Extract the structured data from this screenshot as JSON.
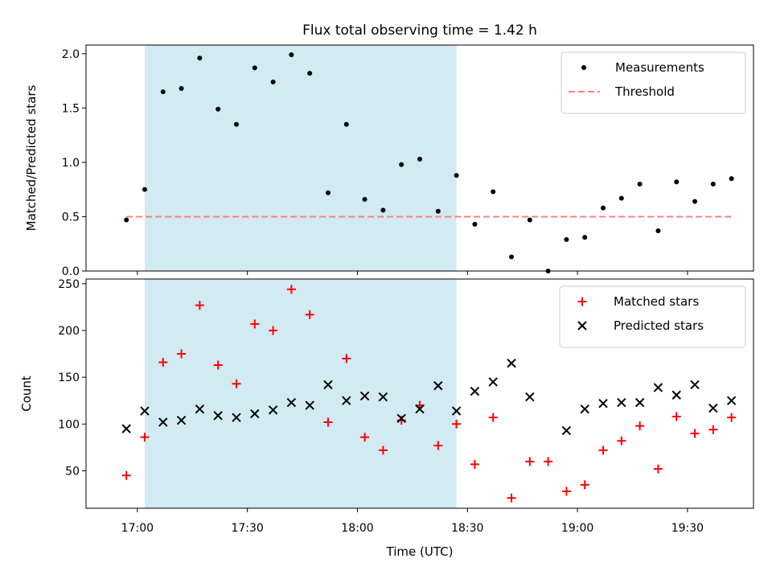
{
  "title": "Flux total observing time = 1.42 h",
  "chart_data": [
    {
      "type": "scatter",
      "ylabel": "Matched/Predicted stars",
      "xlabel": "",
      "x_range": [
        "16:46",
        "19:48"
      ],
      "ylim": [
        0,
        2.08
      ],
      "y_ticks": [
        "0.0",
        "0.5",
        "1.0",
        "1.5",
        "2.0"
      ],
      "shaded_interval": [
        "17:02",
        "18:27"
      ],
      "shaded_color": "#add8e6",
      "legend_position": "top-right",
      "series": [
        {
          "name": "Measurements",
          "marker": "dot",
          "color": "#000000",
          "x": [
            "16:57",
            "17:02",
            "17:07",
            "17:12",
            "17:17",
            "17:22",
            "17:27",
            "17:32",
            "17:37",
            "17:42",
            "17:47",
            "17:52",
            "17:57",
            "18:02",
            "18:07",
            "18:12",
            "18:17",
            "18:22",
            "18:27",
            "18:32",
            "18:37",
            "18:42",
            "18:47",
            "18:52",
            "18:57",
            "19:02",
            "19:07",
            "19:12",
            "19:17",
            "19:22",
            "19:27",
            "19:32",
            "19:37",
            "19:42"
          ],
          "y": [
            0.47,
            0.75,
            1.65,
            1.68,
            1.96,
            1.49,
            1.35,
            1.87,
            1.74,
            1.99,
            1.82,
            0.72,
            1.35,
            0.66,
            0.56,
            0.98,
            1.03,
            0.55,
            0.88,
            0.43,
            0.73,
            0.13,
            0.47,
            0.0,
            0.29,
            0.31,
            0.58,
            0.67,
            0.8,
            0.37,
            0.82,
            0.64,
            0.8,
            0.85
          ]
        },
        {
          "name": "Threshold",
          "style": "dashed",
          "color": "#ff7f7f",
          "x": [
            "16:57",
            "19:42"
          ],
          "y": [
            0.5,
            0.5
          ]
        }
      ]
    },
    {
      "type": "scatter",
      "ylabel": "Count",
      "xlabel": "Time (UTC)",
      "x_range": [
        "16:46",
        "19:48"
      ],
      "ylim": [
        10,
        255
      ],
      "y_ticks": [
        "50",
        "100",
        "150",
        "200",
        "250"
      ],
      "x_ticks": [
        "17:00",
        "17:30",
        "18:00",
        "18:30",
        "19:00",
        "19:30"
      ],
      "shaded_interval": [
        "17:02",
        "18:27"
      ],
      "shaded_color": "#add8e6",
      "legend_position": "top-right",
      "series": [
        {
          "name": "Matched stars",
          "marker": "plus",
          "color": "#ff0000",
          "x": [
            "16:57",
            "17:02",
            "17:07",
            "17:12",
            "17:17",
            "17:22",
            "17:27",
            "17:32",
            "17:37",
            "17:42",
            "17:47",
            "17:52",
            "17:57",
            "18:02",
            "18:07",
            "18:12",
            "18:17",
            "18:22",
            "18:27",
            "18:32",
            "18:37",
            "18:42",
            "18:47",
            "18:52",
            "18:57",
            "19:02",
            "19:07",
            "19:12",
            "19:17",
            "19:22",
            "19:27",
            "19:32",
            "19:37",
            "19:42"
          ],
          "y": [
            45,
            86,
            166,
            175,
            227,
            163,
            143,
            207,
            200,
            244,
            217,
            102,
            170,
            86,
            72,
            104,
            120,
            77,
            100,
            57,
            107,
            21,
            60,
            60,
            28,
            35,
            72,
            82,
            98,
            52,
            108,
            90,
            94,
            107
          ]
        },
        {
          "name": "Predicted stars",
          "marker": "x",
          "color": "#000000",
          "x": [
            "16:57",
            "17:02",
            "17:07",
            "17:12",
            "17:17",
            "17:22",
            "17:27",
            "17:32",
            "17:37",
            "17:42",
            "17:47",
            "17:52",
            "17:57",
            "18:02",
            "18:07",
            "18:12",
            "18:17",
            "18:22",
            "18:27",
            "18:32",
            "18:37",
            "18:42",
            "18:47",
            "18:57",
            "19:02",
            "19:07",
            "19:12",
            "19:17",
            "19:22",
            "19:27",
            "19:32",
            "19:37",
            "19:42"
          ],
          "y": [
            95,
            114,
            102,
            104,
            116,
            109,
            107,
            111,
            115,
            123,
            120,
            142,
            125,
            130,
            129,
            106,
            116,
            141,
            114,
            135,
            145,
            165,
            129,
            93,
            116,
            122,
            123,
            123,
            139,
            131,
            142,
            117,
            125
          ]
        }
      ]
    }
  ]
}
